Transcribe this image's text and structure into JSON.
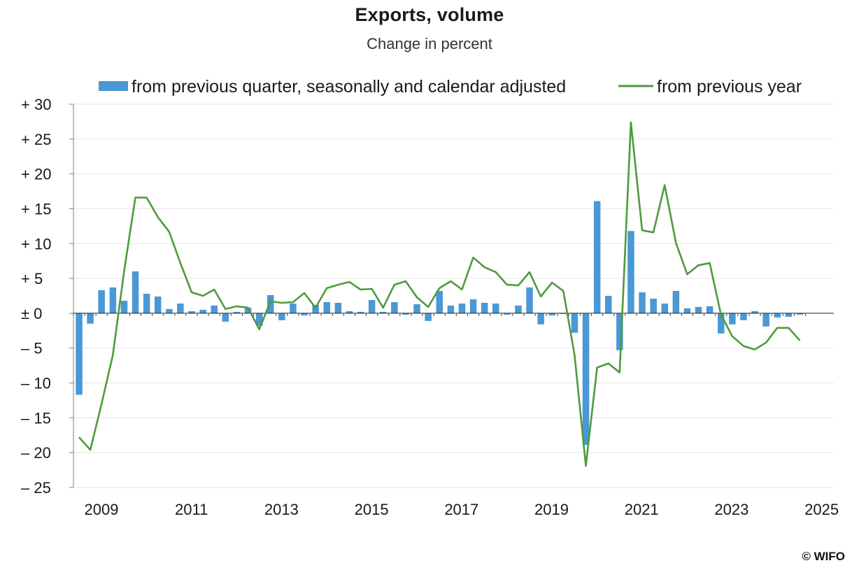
{
  "chart_data": {
    "type": "bar+line",
    "title": "Exports, volume",
    "subtitle": "Change in percent",
    "xlabel": "",
    "ylabel": "",
    "ylim": [
      -25,
      30
    ],
    "yticks": [
      30,
      25,
      20,
      15,
      10,
      5,
      0,
      -5,
      -10,
      -15,
      -20,
      -25
    ],
    "ytick_labels": [
      "+ 30",
      "+ 25",
      "+ 20",
      "+ 15",
      "+ 10",
      "+ 5",
      "± 0",
      "– 5",
      "– 10",
      "– 15",
      "– 20",
      "– 25"
    ],
    "xtick_labels": [
      "2009",
      "2011",
      "2013",
      "2015",
      "2017",
      "2019",
      "2021",
      "2023",
      "2025"
    ],
    "x_start": "2008Q3",
    "legend_position": "top",
    "series": [
      {
        "name": "from previous quarter, seasonally and calendar adjusted",
        "type": "bar",
        "color": "#4a98d5",
        "values": [
          -11.7,
          -1.5,
          3.3,
          3.7,
          1.8,
          6.0,
          2.8,
          2.4,
          0.6,
          1.4,
          0.3,
          0.5,
          1.1,
          -1.2,
          0.2,
          0.8,
          -1.8,
          2.6,
          -1.0,
          1.4,
          -0.3,
          1.2,
          1.6,
          1.5,
          0.3,
          0.2,
          1.9,
          0.2,
          1.6,
          -0.2,
          1.3,
          -1.1,
          3.2,
          1.1,
          1.4,
          2.0,
          1.5,
          1.4,
          -0.2,
          1.1,
          3.7,
          -1.6,
          -0.3,
          -0.1,
          -2.8,
          -18.9,
          16.1,
          2.5,
          -5.3,
          11.8,
          3.0,
          2.1,
          1.4,
          3.2,
          0.7,
          0.9,
          1.0,
          -2.9,
          -1.6,
          -1.0,
          0.3,
          -1.9,
          -0.6,
          -0.5,
          -0.2
        ]
      },
      {
        "name": "from previous year",
        "type": "line",
        "color": "#4e9a3e",
        "values": [
          -17.8,
          -19.6,
          -13.0,
          -6.0,
          6.0,
          16.6,
          16.6,
          13.8,
          11.7,
          7.2,
          3.0,
          2.5,
          3.4,
          0.6,
          1.0,
          0.8,
          -2.3,
          1.7,
          1.5,
          1.6,
          2.9,
          0.8,
          3.6,
          4.1,
          4.5,
          3.4,
          3.5,
          0.8,
          4.1,
          4.6,
          2.3,
          0.9,
          3.6,
          4.6,
          3.4,
          8.0,
          6.6,
          5.9,
          4.1,
          4.0,
          5.9,
          2.4,
          4.4,
          3.2,
          -6.0,
          -21.9,
          -7.8,
          -7.2,
          -8.5,
          27.4,
          11.9,
          11.6,
          18.4,
          10.1,
          5.6,
          6.9,
          7.2,
          -0.2,
          -3.3,
          -4.7,
          -5.2,
          -4.2,
          -2.1,
          -2.1,
          -3.9
        ]
      }
    ]
  },
  "footer": {
    "copyright": "© WIFO"
  }
}
